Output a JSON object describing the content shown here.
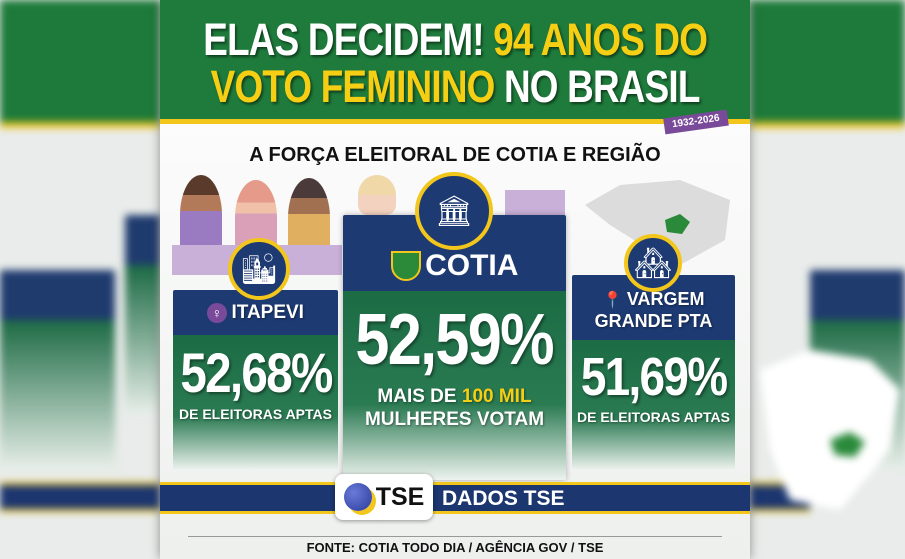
{
  "header": {
    "title_white_1": "ELAS DECIDEM!",
    "title_yellow_1": "94 ANOS DO",
    "title_yellow_2": "VOTO FEMININO",
    "title_white_2": "NO BRASIL",
    "ribbon": "1932-2026"
  },
  "subtitle": "A FORÇA ELEITORAL DE COTIA E REGIÃO",
  "cards": [
    {
      "city": "ITAPEVI",
      "value": "52,68%",
      "caption": "DE ELEITORAS APTAS"
    },
    {
      "city": "COTIA",
      "value": "52,59%",
      "caption_1": "MAIS DE",
      "caption_highlight": "100 MIL",
      "caption_2": "MULHERES VOTAM"
    },
    {
      "city_1": "VARGEM",
      "city_2": "GRANDE PTA",
      "value": "51,69%",
      "caption": "DE ELEITORAS APTAS"
    }
  ],
  "banner": {
    "logo": "TSE",
    "label": "DADOS TSE"
  },
  "footer": "FONTE: COTIA TODO DIA / AGÊNCIA GOV / TSE",
  "colors": {
    "green": "#1e7b3b",
    "yellow": "#f2c61b",
    "navy": "#1d3a73",
    "purple": "#7a4a9a"
  }
}
